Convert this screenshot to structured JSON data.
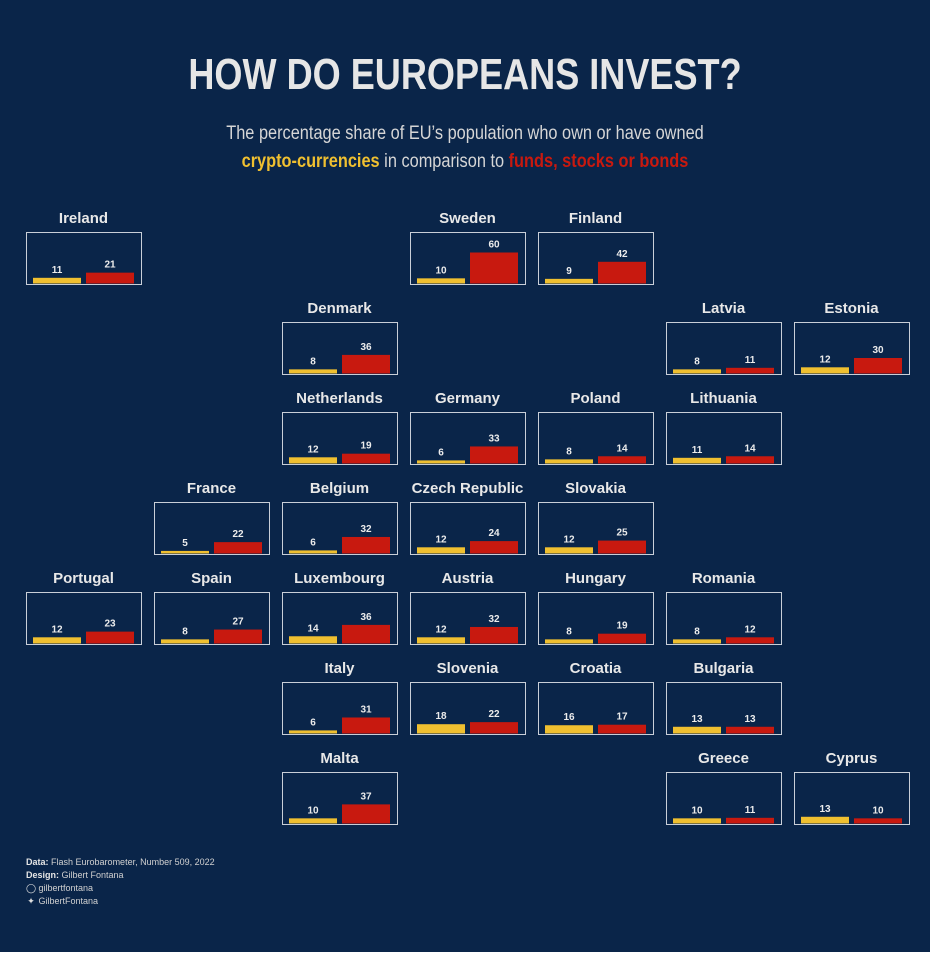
{
  "title": "HOW DO EUROPEANS INVEST?",
  "subtitle": {
    "line1": "The percentage share of EU’s population who own or have owned",
    "crypto_label": "crypto-currencies",
    "middle": " in comparison to ",
    "funds_label": "funds, stocks or bonds"
  },
  "colors": {
    "background": "#0a2549",
    "crypto": "#f0c030",
    "funds": "#c8190f"
  },
  "credits": {
    "data_label": "Data:",
    "data_value": "Flash Eurobarometer, Number 509, 2022",
    "design_label": "Design:",
    "design_value": "Gilbert Fontana",
    "github_icon": "github-icon",
    "github_handle": "gilbertfontana",
    "twitter_icon": "twitter-icon",
    "twitter_handle": "GilbertFontana"
  },
  "chart_data": {
    "type": "bar",
    "layout": "tile-grid map of Europe",
    "series": [
      {
        "name": "crypto-currencies",
        "color": "#f0c030"
      },
      {
        "name": "funds, stocks or bonds",
        "color": "#c8190f"
      }
    ],
    "countries": [
      {
        "name": "Ireland",
        "row": 0,
        "col": 0,
        "crypto": 11,
        "funds": 21
      },
      {
        "name": "Sweden",
        "row": 0,
        "col": 3,
        "crypto": 10,
        "funds": 60
      },
      {
        "name": "Finland",
        "row": 0,
        "col": 4,
        "crypto": 9,
        "funds": 42
      },
      {
        "name": "Denmark",
        "row": 1,
        "col": 2,
        "crypto": 8,
        "funds": 36
      },
      {
        "name": "Latvia",
        "row": 1,
        "col": 5,
        "crypto": 8,
        "funds": 11
      },
      {
        "name": "Estonia",
        "row": 1,
        "col": 6,
        "crypto": 12,
        "funds": 30
      },
      {
        "name": "Netherlands",
        "row": 2,
        "col": 2,
        "crypto": 12,
        "funds": 19
      },
      {
        "name": "Germany",
        "row": 2,
        "col": 3,
        "crypto": 6,
        "funds": 33
      },
      {
        "name": "Poland",
        "row": 2,
        "col": 4,
        "crypto": 8,
        "funds": 14
      },
      {
        "name": "Lithuania",
        "row": 2,
        "col": 5,
        "crypto": 11,
        "funds": 14
      },
      {
        "name": "France",
        "row": 3,
        "col": 1,
        "crypto": 5,
        "funds": 22
      },
      {
        "name": "Belgium",
        "row": 3,
        "col": 2,
        "crypto": 6,
        "funds": 32
      },
      {
        "name": "Czech Republic",
        "row": 3,
        "col": 3,
        "crypto": 12,
        "funds": 24
      },
      {
        "name": "Slovakia",
        "row": 3,
        "col": 4,
        "crypto": 12,
        "funds": 25
      },
      {
        "name": "Portugal",
        "row": 4,
        "col": 0,
        "crypto": 12,
        "funds": 23
      },
      {
        "name": "Spain",
        "row": 4,
        "col": 1,
        "crypto": 8,
        "funds": 27
      },
      {
        "name": "Luxembourg",
        "row": 4,
        "col": 2,
        "crypto": 14,
        "funds": 36
      },
      {
        "name": "Austria",
        "row": 4,
        "col": 3,
        "crypto": 12,
        "funds": 32
      },
      {
        "name": "Hungary",
        "row": 4,
        "col": 4,
        "crypto": 8,
        "funds": 19
      },
      {
        "name": "Romania",
        "row": 4,
        "col": 5,
        "crypto": 8,
        "funds": 12
      },
      {
        "name": "Italy",
        "row": 5,
        "col": 2,
        "crypto": 6,
        "funds": 31
      },
      {
        "name": "Slovenia",
        "row": 5,
        "col": 3,
        "crypto": 18,
        "funds": 22
      },
      {
        "name": "Croatia",
        "row": 5,
        "col": 4,
        "crypto": 16,
        "funds": 17
      },
      {
        "name": "Bulgaria",
        "row": 5,
        "col": 5,
        "crypto": 13,
        "funds": 13
      },
      {
        "name": "Malta",
        "row": 6,
        "col": 2,
        "crypto": 10,
        "funds": 37
      },
      {
        "name": "Greece",
        "row": 6,
        "col": 5,
        "crypto": 10,
        "funds": 11
      },
      {
        "name": "Cyprus",
        "row": 6,
        "col": 6,
        "crypto": 13,
        "funds": 10
      }
    ],
    "ylim": [
      0,
      60
    ]
  }
}
